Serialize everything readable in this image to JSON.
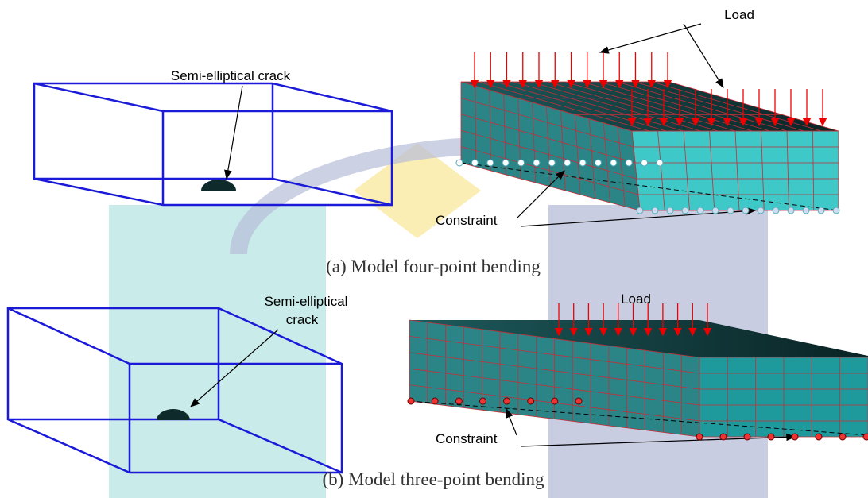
{
  "panels": [
    {
      "crack_label": [
        "Semi-elliptical crack"
      ],
      "load_label": "Load",
      "constraint_label": "Constraint",
      "caption": "(a) Model four-point bending"
    },
    {
      "crack_label": [
        "Semi-elliptical",
        "crack"
      ],
      "load_label": "Load",
      "constraint_label": "Constraint",
      "caption": "(b) Model three-point bending"
    }
  ]
}
